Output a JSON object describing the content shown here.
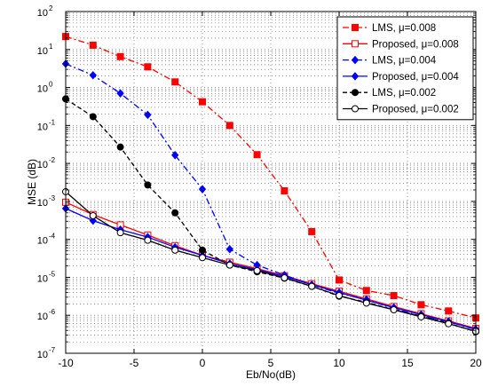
{
  "chart_data": {
    "type": "line",
    "title": "",
    "xlabel": "Eb/No(dB)",
    "ylabel": "MSE (dB)",
    "xlim": [
      -10,
      20
    ],
    "ylim_exponent": [
      -7,
      2
    ],
    "yscale": "log",
    "grid": true,
    "legend_position": "top-right",
    "x_ticks": [
      "-10",
      "-5",
      "0",
      "5",
      "10",
      "15",
      "20"
    ],
    "y_tick_base": "10",
    "y_tick_exponents": [
      "-7",
      "-6",
      "-5",
      "-4",
      "-3",
      "-2",
      "-1",
      "0",
      "1",
      "2"
    ],
    "x": [
      -10,
      -8,
      -6,
      -4,
      -2,
      0,
      2,
      4,
      6,
      8,
      10,
      12,
      14,
      16,
      18,
      20
    ],
    "series": [
      {
        "name": "LMS, μ=0.008",
        "color": "#ff0000",
        "dash": "dashdot",
        "marker": "square-filled",
        "values": [
          22,
          13,
          6.5,
          3.5,
          1.4,
          0.42,
          0.1,
          0.017,
          0.0019,
          0.00016,
          8.5e-06,
          4.5e-06,
          3.3e-06,
          1.9e-06,
          1.3e-06,
          8.5e-07
        ]
      },
      {
        "name": "Proposed, μ=0.008",
        "color": "#ff0000",
        "dash": "solid",
        "marker": "square-open",
        "values": [
          0.00095,
          0.00045,
          0.00024,
          0.00013,
          6.8e-05,
          3.8e-05,
          2.5e-05,
          1.7e-05,
          1.1e-05,
          6.8e-06,
          4.3e-06,
          2.7e-06,
          1.7e-06,
          1.1e-06,
          7.1e-07,
          4.5e-07
        ]
      },
      {
        "name": "LMS, μ=0.004",
        "color": "#0000ff",
        "dash": "dashdot",
        "marker": "diamond-filled",
        "values": [
          4.2,
          2.1,
          0.7,
          0.19,
          0.0165,
          0.0021,
          5.5e-05,
          2.1e-05,
          1.15e-05,
          6.3e-06,
          3.8e-06,
          2.6e-06,
          1.5e-06,
          9.5e-07,
          6.8e-07,
          4.2e-07
        ]
      },
      {
        "name": "Proposed, μ=0.004",
        "color": "#0000ff",
        "dash": "solid",
        "marker": "diamond-filled",
        "values": [
          0.00065,
          0.00031,
          0.00018,
          0.000115,
          6.2e-05,
          3.8e-05,
          2.3e-05,
          1.6e-05,
          1.05e-05,
          6.4e-06,
          4e-06,
          2.5e-06,
          1.6e-06,
          1.05e-06,
          6.8e-07,
          4.3e-07
        ]
      },
      {
        "name": "LMS, μ=0.002",
        "color": "#000000",
        "dash": "dashed",
        "marker": "circle-filled",
        "values": [
          0.5,
          0.17,
          0.027,
          0.0027,
          0.0005,
          5.2e-05,
          2.1e-05,
          1.4e-05,
          9.5e-06,
          5.8e-06,
          3.2e-06,
          2.2e-06,
          1.4e-06,
          9.5e-07,
          6.2e-07,
          3.7e-07
        ]
      },
      {
        "name": "Proposed, μ=0.002",
        "color": "#000000",
        "dash": "solid",
        "marker": "circle-open",
        "values": [
          0.0018,
          0.00042,
          0.00015,
          9.5e-05,
          5.2e-05,
          3.3e-05,
          2.1e-05,
          1.5e-05,
          9.7e-06,
          5.8e-06,
          3.3e-06,
          2.1e-06,
          1.4e-06,
          9.1e-07,
          6e-07,
          3.8e-07
        ]
      }
    ]
  }
}
